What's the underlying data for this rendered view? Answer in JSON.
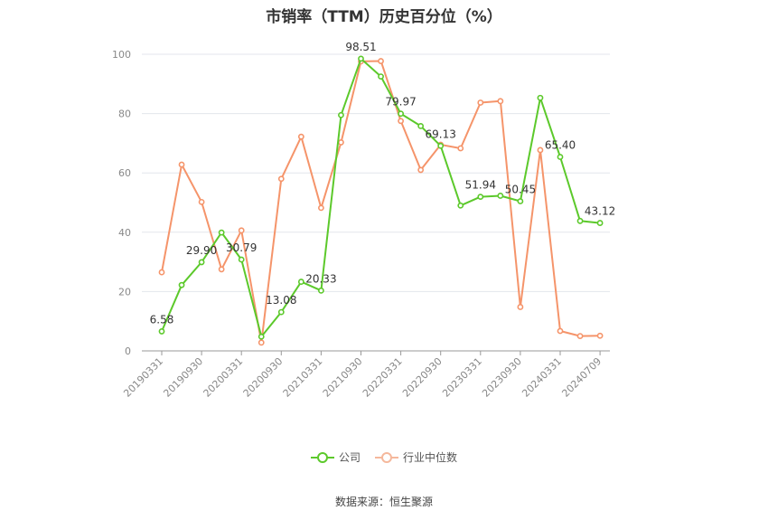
{
  "chart_data": {
    "type": "line",
    "title": "市销率（TTM）历史百分位（%）",
    "x": [
      "20190331",
      "20190630",
      "20190930",
      "20191231",
      "20200331",
      "20200630",
      "20200930",
      "20201231",
      "20210331",
      "20210630",
      "20210930",
      "20211231",
      "20220331",
      "20220630",
      "20220930",
      "20221231",
      "20230331",
      "20230630",
      "20230930",
      "20231231",
      "20240331",
      "20240630",
      "20240709"
    ],
    "xtick_labels": [
      "20190331",
      "20190930",
      "20200331",
      "20200930",
      "20210331",
      "20210930",
      "20220331",
      "20220930",
      "20230331",
      "20230930",
      "20240331",
      "20240709"
    ],
    "ylim": [
      0,
      100
    ],
    "yticks": [
      0,
      20,
      40,
      60,
      80,
      100
    ],
    "grid": true,
    "legend_position": "bottom",
    "series": [
      {
        "name": "公司",
        "color": "#5cc92b",
        "values": [
          6.58,
          22.2,
          29.9,
          39.9,
          30.79,
          4.8,
          13.08,
          23.3,
          20.33,
          79.5,
          98.51,
          92.5,
          79.97,
          75.8,
          69.13,
          49.0,
          51.94,
          52.3,
          50.45,
          85.3,
          65.4,
          43.8,
          43.12
        ],
        "labels": {
          "0": "6.58",
          "2": "29.90",
          "4": "30.79",
          "6": "13.08",
          "8": "20.33",
          "10": "98.51",
          "12": "79.97",
          "14": "69.13",
          "16": "51.94",
          "18": "50.45",
          "20": "65.40",
          "22": "43.12"
        }
      },
      {
        "name": "行业中位数",
        "color": "#f5946a",
        "values": [
          26.5,
          62.8,
          50.2,
          27.5,
          40.6,
          2.8,
          58.0,
          72.2,
          48.2,
          70.3,
          97.6,
          97.7,
          77.5,
          61.0,
          69.5,
          68.3,
          83.7,
          84.2,
          14.8,
          67.7,
          6.7,
          5.0,
          5.1
        ]
      }
    ]
  },
  "source": "数据来源：恒生聚源"
}
